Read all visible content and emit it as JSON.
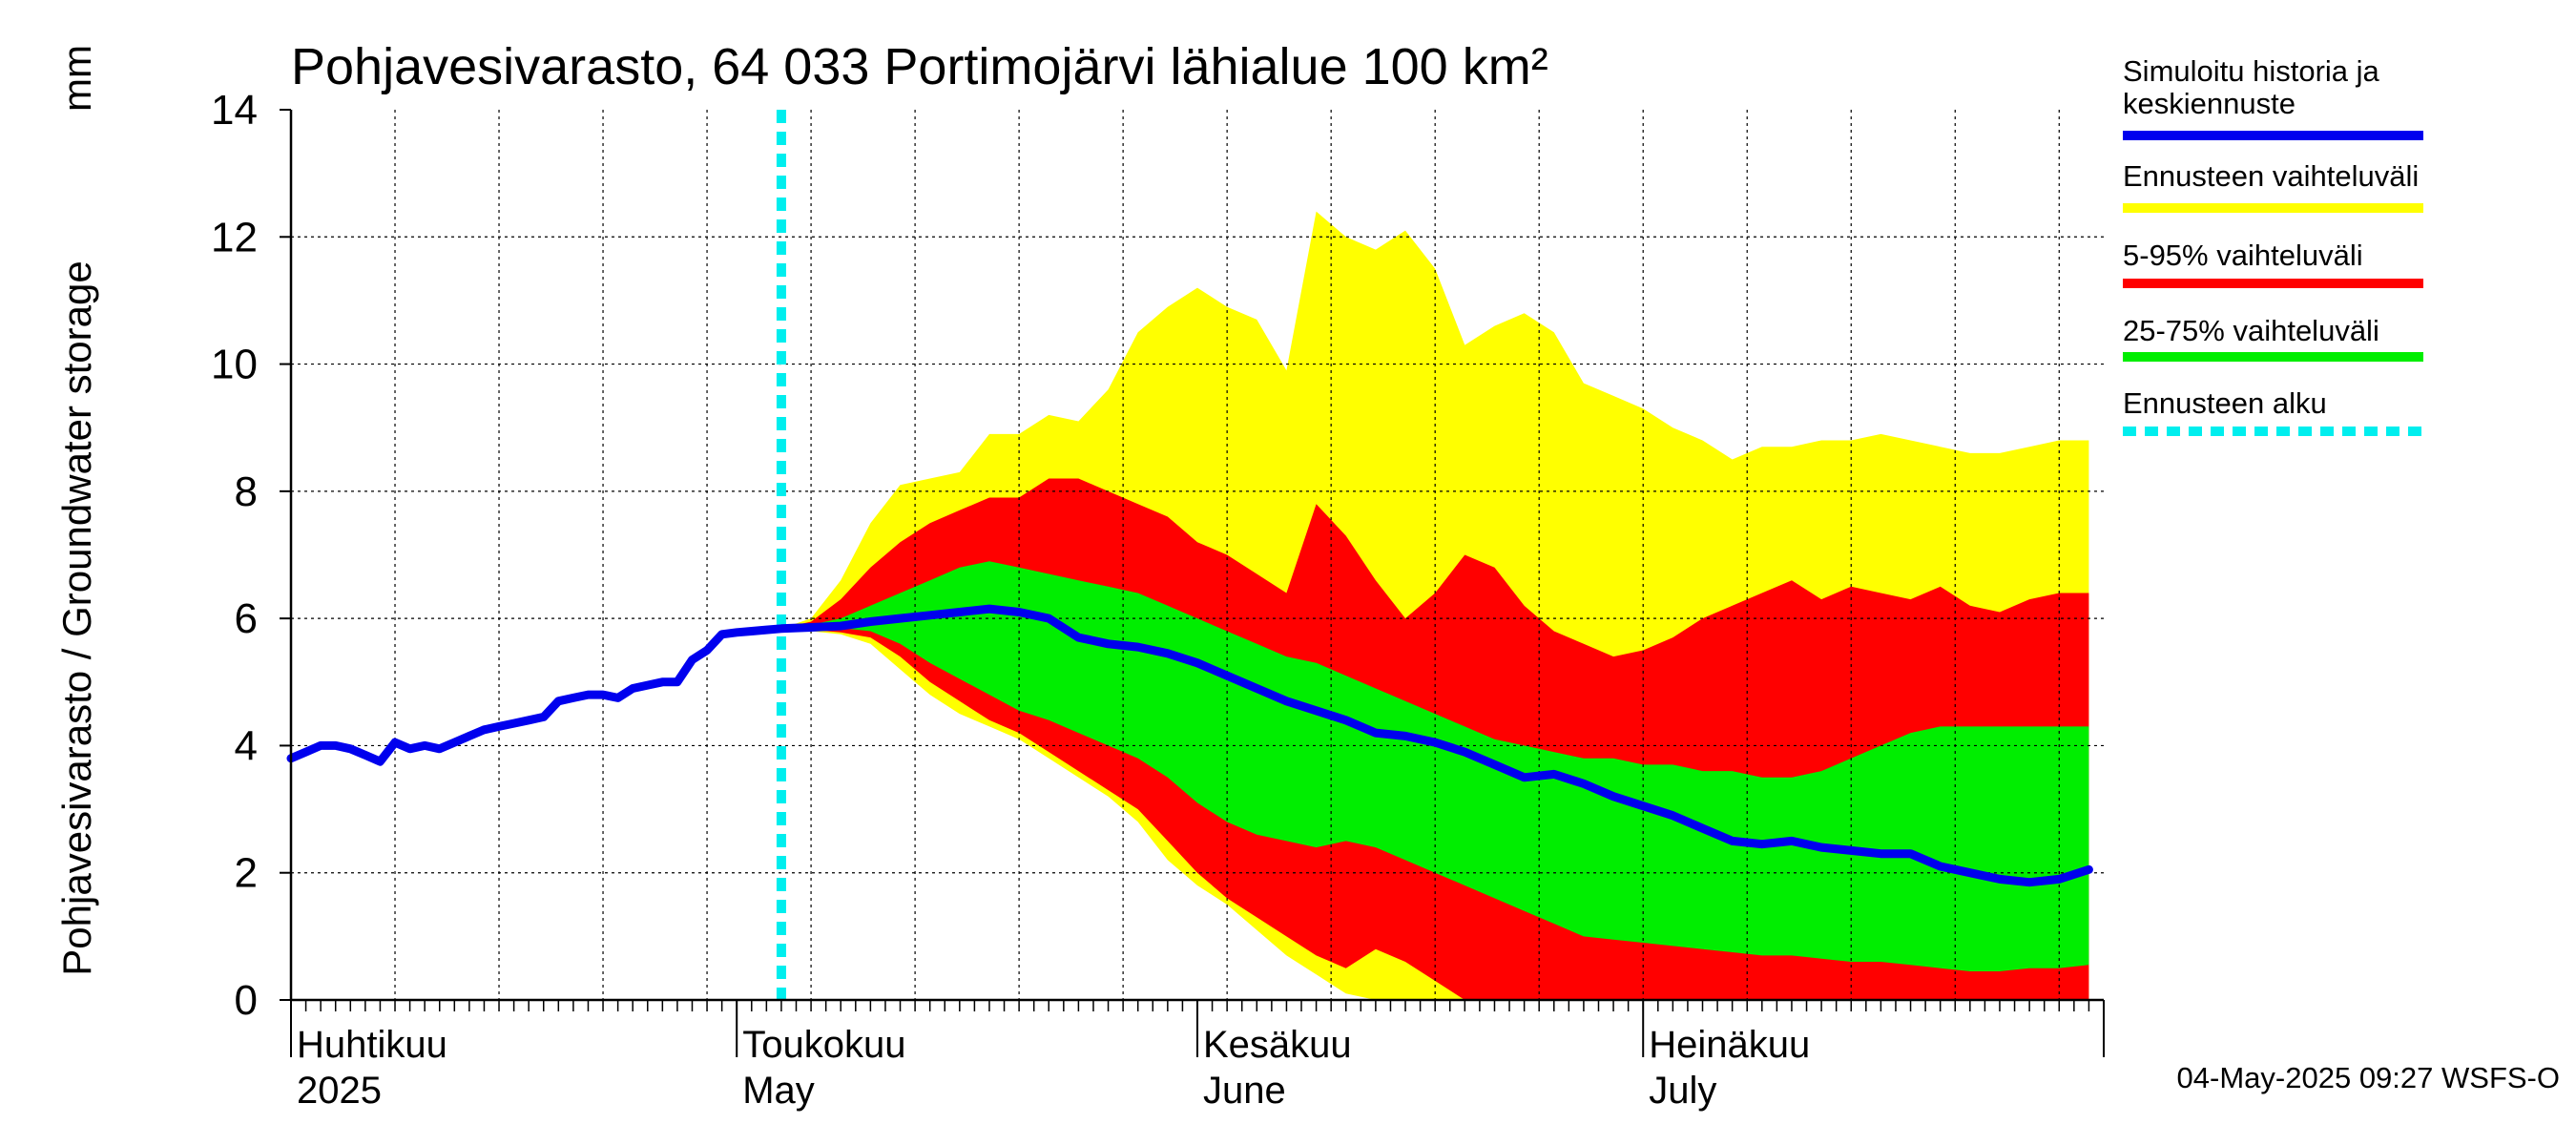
{
  "chart_data": {
    "type": "area",
    "title": "Pohjavesivarasto, 64 033 Portimojärvi lähialue 100 km²",
    "ylabel": "Pohjavesivarasto / Groundwater storage",
    "yunit": "mm",
    "ylim": [
      0,
      14
    ],
    "yticks": [
      "0",
      "2",
      "4",
      "6",
      "8",
      "10",
      "12",
      "14"
    ],
    "xlim": [
      "2025-04-01",
      "2025-08-01"
    ],
    "grid": true,
    "months": [
      {
        "top": "Huhtikuu",
        "bottom": "2025",
        "date": "2025-04-01"
      },
      {
        "top": "Toukokuu",
        "bottom": "May",
        "date": "2025-05-01"
      },
      {
        "top": "Kesäkuu",
        "bottom": "June",
        "date": "2025-06-01"
      },
      {
        "top": "Heinäkuu",
        "bottom": "July",
        "date": "2025-07-01"
      }
    ],
    "forecast_start": "2025-05-04",
    "colors": {
      "history": "#0000ee",
      "full_range": "#ffff00",
      "p5_95": "#ff0000",
      "p25_75": "#00ee00",
      "forecast_start": "#00eeee"
    },
    "legend": [
      {
        "label": "Simuloitu historia ja keskiennuste",
        "color": "#0000ee",
        "style": "solid"
      },
      {
        "label": "Ennusteen vaihteluväli",
        "color": "#ffff00",
        "style": "solid"
      },
      {
        "label": "5-95% vaihteluväli",
        "color": "#ff0000",
        "style": "solid"
      },
      {
        "label": "25-75% vaihteluväli",
        "color": "#00ee00",
        "style": "solid"
      },
      {
        "label": "Ennusteen alku",
        "color": "#00eeee",
        "style": "dashed"
      }
    ],
    "history": {
      "dates": [
        "2025-04-01",
        "2025-04-02",
        "2025-04-03",
        "2025-04-04",
        "2025-04-05",
        "2025-04-06",
        "2025-04-07",
        "2025-04-08",
        "2025-04-09",
        "2025-04-10",
        "2025-04-11",
        "2025-04-12",
        "2025-04-13",
        "2025-04-14",
        "2025-04-15",
        "2025-04-16",
        "2025-04-17",
        "2025-04-18",
        "2025-04-19",
        "2025-04-20",
        "2025-04-21",
        "2025-04-22",
        "2025-04-23",
        "2025-04-24",
        "2025-04-25",
        "2025-04-26",
        "2025-04-27",
        "2025-04-28",
        "2025-04-29",
        "2025-04-30",
        "2025-05-01",
        "2025-05-02",
        "2025-05-03",
        "2025-05-04"
      ],
      "values": [
        3.8,
        3.9,
        4.0,
        4.0,
        3.95,
        3.85,
        3.75,
        4.05,
        3.95,
        4.0,
        3.95,
        4.05,
        4.15,
        4.25,
        4.3,
        4.35,
        4.4,
        4.45,
        4.7,
        4.75,
        4.8,
        4.8,
        4.75,
        4.9,
        4.95,
        5.0,
        5.0,
        5.35,
        5.5,
        5.75,
        5.78,
        5.8,
        5.82,
        5.84
      ]
    },
    "forecast": {
      "dates": [
        "2025-05-04",
        "2025-05-06",
        "2025-05-08",
        "2025-05-10",
        "2025-05-12",
        "2025-05-14",
        "2025-05-16",
        "2025-05-18",
        "2025-05-20",
        "2025-05-22",
        "2025-05-24",
        "2025-05-26",
        "2025-05-28",
        "2025-05-30",
        "2025-06-01",
        "2025-06-03",
        "2025-06-05",
        "2025-06-07",
        "2025-06-09",
        "2025-06-11",
        "2025-06-13",
        "2025-06-15",
        "2025-06-17",
        "2025-06-19",
        "2025-06-21",
        "2025-06-23",
        "2025-06-25",
        "2025-06-27",
        "2025-06-29",
        "2025-07-01",
        "2025-07-03",
        "2025-07-05",
        "2025-07-07",
        "2025-07-09",
        "2025-07-11",
        "2025-07-13",
        "2025-07-15",
        "2025-07-17",
        "2025-07-19",
        "2025-07-21",
        "2025-07-23",
        "2025-07-25",
        "2025-07-27",
        "2025-07-29",
        "2025-07-31"
      ],
      "median": [
        5.84,
        5.86,
        5.88,
        5.95,
        6.0,
        6.05,
        6.1,
        6.15,
        6.1,
        6.0,
        5.7,
        5.6,
        5.55,
        5.45,
        5.3,
        5.1,
        4.9,
        4.7,
        4.55,
        4.4,
        4.2,
        4.15,
        4.05,
        3.9,
        3.7,
        3.5,
        3.55,
        3.4,
        3.2,
        3.05,
        2.9,
        2.7,
        2.5,
        2.45,
        2.5,
        2.4,
        2.35,
        2.3,
        2.3,
        2.1,
        2.0,
        1.9,
        1.85,
        1.9,
        2.05
      ],
      "min": [
        5.84,
        5.8,
        5.75,
        5.6,
        5.2,
        4.8,
        4.5,
        4.3,
        4.1,
        3.8,
        3.5,
        3.2,
        2.8,
        2.2,
        1.8,
        1.5,
        1.1,
        0.7,
        0.4,
        0.1,
        0.0,
        0.0,
        0.0,
        0.0,
        0.0,
        0.0,
        0.0,
        0.0,
        0.0,
        0.0,
        0.0,
        0.0,
        0.0,
        0.0,
        0.0,
        0.0,
        0.0,
        0.0,
        0.0,
        0.0,
        0.0,
        0.0,
        0.0,
        0.0,
        0.0
      ],
      "p5": [
        5.84,
        5.82,
        5.78,
        5.7,
        5.4,
        5.0,
        4.7,
        4.4,
        4.2,
        3.9,
        3.6,
        3.3,
        3.0,
        2.5,
        2.0,
        1.6,
        1.3,
        1.0,
        0.7,
        0.5,
        0.8,
        0.6,
        0.3,
        0.0,
        0.0,
        0.0,
        0.0,
        0.0,
        0.0,
        0.0,
        0.0,
        0.0,
        0.0,
        0.0,
        0.0,
        0.0,
        0.0,
        0.0,
        0.0,
        0.0,
        0.0,
        0.0,
        0.0,
        0.0,
        0.0
      ],
      "p25": [
        5.84,
        5.85,
        5.85,
        5.8,
        5.6,
        5.3,
        5.05,
        4.8,
        4.55,
        4.4,
        4.2,
        4.0,
        3.8,
        3.5,
        3.1,
        2.8,
        2.6,
        2.5,
        2.4,
        2.5,
        2.4,
        2.2,
        2.0,
        1.8,
        1.6,
        1.4,
        1.2,
        1.0,
        0.95,
        0.9,
        0.85,
        0.8,
        0.75,
        0.7,
        0.7,
        0.65,
        0.6,
        0.6,
        0.55,
        0.5,
        0.45,
        0.45,
        0.5,
        0.5,
        0.55
      ],
      "p75": [
        5.84,
        5.9,
        6.0,
        6.2,
        6.4,
        6.6,
        6.8,
        6.9,
        6.8,
        6.7,
        6.6,
        6.5,
        6.4,
        6.2,
        6.0,
        5.8,
        5.6,
        5.4,
        5.3,
        5.1,
        4.9,
        4.7,
        4.5,
        4.3,
        4.1,
        4.0,
        3.9,
        3.8,
        3.8,
        3.7,
        3.7,
        3.6,
        3.6,
        3.5,
        3.5,
        3.6,
        3.8,
        4.0,
        4.2,
        4.3,
        4.3,
        4.3,
        4.3,
        4.3,
        4.3
      ],
      "p95": [
        5.84,
        5.95,
        6.3,
        6.8,
        7.2,
        7.5,
        7.7,
        7.9,
        7.9,
        8.2,
        8.2,
        8.0,
        7.8,
        7.6,
        7.2,
        7.0,
        6.7,
        6.4,
        7.8,
        7.3,
        6.6,
        6.0,
        6.4,
        7.0,
        6.8,
        6.2,
        5.8,
        5.6,
        5.4,
        5.5,
        5.7,
        6.0,
        6.2,
        6.4,
        6.6,
        6.3,
        6.5,
        6.4,
        6.3,
        6.5,
        6.2,
        6.1,
        6.3,
        6.4,
        6.4
      ],
      "max": [
        5.84,
        6.0,
        6.6,
        7.5,
        8.1,
        8.2,
        8.3,
        8.9,
        8.9,
        9.2,
        9.1,
        9.6,
        10.5,
        10.9,
        11.2,
        10.9,
        10.7,
        9.9,
        12.4,
        12.0,
        11.8,
        12.1,
        11.5,
        10.3,
        10.6,
        10.8,
        10.5,
        9.7,
        9.5,
        9.3,
        9.0,
        8.8,
        8.5,
        8.7,
        8.7,
        8.8,
        8.8,
        8.9,
        8.8,
        8.7,
        8.6,
        8.6,
        8.7,
        8.8,
        8.8
      ]
    }
  },
  "timestamp": "04-May-2025 09:27 WSFS-O"
}
